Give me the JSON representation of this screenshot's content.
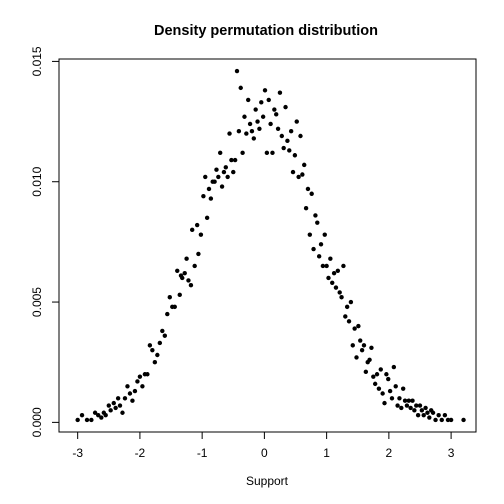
{
  "chart_data": {
    "type": "scatter",
    "title": "Density permutation distribution",
    "xlabel": "Support",
    "ylabel": "",
    "xlim": [
      -3.3,
      3.4
    ],
    "ylim": [
      -0.0004,
      0.0151
    ],
    "xticks": [
      -3,
      -2,
      -1,
      0,
      1,
      2,
      3
    ],
    "xtick_labels": [
      "-3",
      "-2",
      "-1",
      "0",
      "1",
      "2",
      "3"
    ],
    "yticks": [
      0,
      0.005,
      0.01,
      0.015
    ],
    "ytick_labels": [
      "0.000",
      "0.005",
      "0.010",
      "0.015"
    ],
    "grid": false,
    "legend": "none",
    "marker_color": "#000000",
    "points": [
      [
        -3.0,
        0.0001
      ],
      [
        -2.93,
        0.0003
      ],
      [
        -2.85,
        0.0001
      ],
      [
        -2.78,
        0.0001
      ],
      [
        -2.72,
        0.0004
      ],
      [
        -2.67,
        0.0003
      ],
      [
        -2.62,
        0.0002
      ],
      [
        -2.58,
        0.0004
      ],
      [
        -2.55,
        0.0003
      ],
      [
        -2.5,
        0.0007
      ],
      [
        -2.47,
        0.0005
      ],
      [
        -2.42,
        0.0008
      ],
      [
        -2.39,
        0.0006
      ],
      [
        -2.35,
        0.001
      ],
      [
        -2.32,
        0.0007
      ],
      [
        -2.28,
        0.0004
      ],
      [
        -2.24,
        0.001
      ],
      [
        -2.2,
        0.0015
      ],
      [
        -2.16,
        0.0012
      ],
      [
        -2.12,
        0.0009
      ],
      [
        -2.08,
        0.0013
      ],
      [
        -2.04,
        0.0017
      ],
      [
        -2.0,
        0.0019
      ],
      [
        -1.96,
        0.0015
      ],
      [
        -1.92,
        0.002
      ],
      [
        -1.88,
        0.002
      ],
      [
        -1.84,
        0.0032
      ],
      [
        -1.8,
        0.003
      ],
      [
        -1.76,
        0.0025
      ],
      [
        -1.72,
        0.0028
      ],
      [
        -1.68,
        0.0033
      ],
      [
        -1.64,
        0.0038
      ],
      [
        -1.6,
        0.0036
      ],
      [
        -1.56,
        0.0045
      ],
      [
        -1.52,
        0.0052
      ],
      [
        -1.48,
        0.0048
      ],
      [
        -1.44,
        0.0048
      ],
      [
        -1.4,
        0.0063
      ],
      [
        -1.36,
        0.0053
      ],
      [
        -1.34,
        0.0061
      ],
      [
        -1.32,
        0.006
      ],
      [
        -1.28,
        0.0062
      ],
      [
        -1.25,
        0.0068
      ],
      [
        -1.22,
        0.0059
      ],
      [
        -1.18,
        0.0057
      ],
      [
        -1.16,
        0.008
      ],
      [
        -1.12,
        0.0065
      ],
      [
        -1.08,
        0.0082
      ],
      [
        -1.06,
        0.007
      ],
      [
        -1.02,
        0.0078
      ],
      [
        -0.98,
        0.0094
      ],
      [
        -0.95,
        0.0102
      ],
      [
        -0.92,
        0.0085
      ],
      [
        -0.89,
        0.0097
      ],
      [
        -0.86,
        0.0093
      ],
      [
        -0.83,
        0.01
      ],
      [
        -0.8,
        0.01
      ],
      [
        -0.77,
        0.0105
      ],
      [
        -0.74,
        0.0102
      ],
      [
        -0.71,
        0.0112
      ],
      [
        -0.68,
        0.0098
      ],
      [
        -0.65,
        0.0104
      ],
      [
        -0.62,
        0.0106
      ],
      [
        -0.59,
        0.0102
      ],
      [
        -0.56,
        0.012
      ],
      [
        -0.53,
        0.0109
      ],
      [
        -0.5,
        0.0104
      ],
      [
        -0.47,
        0.0109
      ],
      [
        -0.44,
        0.0146
      ],
      [
        -0.41,
        0.0121
      ],
      [
        -0.38,
        0.0139
      ],
      [
        -0.35,
        0.0112
      ],
      [
        -0.32,
        0.0127
      ],
      [
        -0.29,
        0.012
      ],
      [
        -0.26,
        0.0134
      ],
      [
        -0.23,
        0.0124
      ],
      [
        -0.2,
        0.0121
      ],
      [
        -0.17,
        0.0118
      ],
      [
        -0.14,
        0.013
      ],
      [
        -0.11,
        0.0125
      ],
      [
        -0.08,
        0.0122
      ],
      [
        -0.05,
        0.0133
      ],
      [
        -0.02,
        0.0127
      ],
      [
        0.01,
        0.0138
      ],
      [
        0.04,
        0.0112
      ],
      [
        0.07,
        0.0134
      ],
      [
        0.1,
        0.0124
      ],
      [
        0.13,
        0.0112
      ],
      [
        0.16,
        0.013
      ],
      [
        0.19,
        0.0128
      ],
      [
        0.22,
        0.0122
      ],
      [
        0.25,
        0.0137
      ],
      [
        0.28,
        0.0119
      ],
      [
        0.31,
        0.0114
      ],
      [
        0.34,
        0.0131
      ],
      [
        0.37,
        0.0117
      ],
      [
        0.4,
        0.0113
      ],
      [
        0.43,
        0.0121
      ],
      [
        0.46,
        0.0104
      ],
      [
        0.49,
        0.0111
      ],
      [
        0.52,
        0.0125
      ],
      [
        0.55,
        0.0102
      ],
      [
        0.58,
        0.0119
      ],
      [
        0.61,
        0.0103
      ],
      [
        0.64,
        0.0107
      ],
      [
        0.67,
        0.0089
      ],
      [
        0.7,
        0.0097
      ],
      [
        0.73,
        0.0078
      ],
      [
        0.76,
        0.0095
      ],
      [
        0.79,
        0.0072
      ],
      [
        0.82,
        0.0086
      ],
      [
        0.85,
        0.0083
      ],
      [
        0.88,
        0.0069
      ],
      [
        0.91,
        0.0074
      ],
      [
        0.94,
        0.0065
      ],
      [
        0.97,
        0.0078
      ],
      [
        1.0,
        0.0065
      ],
      [
        1.03,
        0.006
      ],
      [
        1.06,
        0.0068
      ],
      [
        1.09,
        0.0058
      ],
      [
        1.12,
        0.0062
      ],
      [
        1.15,
        0.0056
      ],
      [
        1.18,
        0.0063
      ],
      [
        1.21,
        0.0054
      ],
      [
        1.24,
        0.0052
      ],
      [
        1.27,
        0.0065
      ],
      [
        1.3,
        0.0044
      ],
      [
        1.33,
        0.0048
      ],
      [
        1.36,
        0.0042
      ],
      [
        1.39,
        0.005
      ],
      [
        1.42,
        0.0032
      ],
      [
        1.45,
        0.0039
      ],
      [
        1.48,
        0.0027
      ],
      [
        1.51,
        0.004
      ],
      [
        1.54,
        0.0034
      ],
      [
        1.57,
        0.003
      ],
      [
        1.6,
        0.0032
      ],
      [
        1.63,
        0.0021
      ],
      [
        1.66,
        0.0025
      ],
      [
        1.69,
        0.0026
      ],
      [
        1.72,
        0.0031
      ],
      [
        1.75,
        0.0019
      ],
      [
        1.78,
        0.0016
      ],
      [
        1.81,
        0.002
      ],
      [
        1.84,
        0.0014
      ],
      [
        1.87,
        0.0022
      ],
      [
        1.9,
        0.0012
      ],
      [
        1.93,
        0.0008
      ],
      [
        1.96,
        0.002
      ],
      [
        1.99,
        0.0018
      ],
      [
        2.02,
        0.0013
      ],
      [
        2.05,
        0.001
      ],
      [
        2.08,
        0.0023
      ],
      [
        2.11,
        0.0015
      ],
      [
        2.14,
        0.0007
      ],
      [
        2.17,
        0.001
      ],
      [
        2.2,
        0.0006
      ],
      [
        2.23,
        0.0014
      ],
      [
        2.26,
        0.0009
      ],
      [
        2.29,
        0.0007
      ],
      [
        2.32,
        0.0009
      ],
      [
        2.35,
        0.0006
      ],
      [
        2.38,
        0.0009
      ],
      [
        2.41,
        0.0005
      ],
      [
        2.44,
        0.0007
      ],
      [
        2.47,
        0.0003
      ],
      [
        2.5,
        0.0007
      ],
      [
        2.53,
        0.0005
      ],
      [
        2.56,
        0.0003
      ],
      [
        2.59,
        0.0006
      ],
      [
        2.62,
        0.0004
      ],
      [
        2.65,
        0.0002
      ],
      [
        2.68,
        0.0005
      ],
      [
        2.71,
        0.0004
      ],
      [
        2.75,
        0.0001
      ],
      [
        2.8,
        0.0003
      ],
      [
        2.85,
        0.0001
      ],
      [
        2.9,
        0.0003
      ],
      [
        2.95,
        0.0001
      ],
      [
        3.0,
        0.0001
      ],
      [
        3.2,
        0.0001
      ]
    ]
  }
}
